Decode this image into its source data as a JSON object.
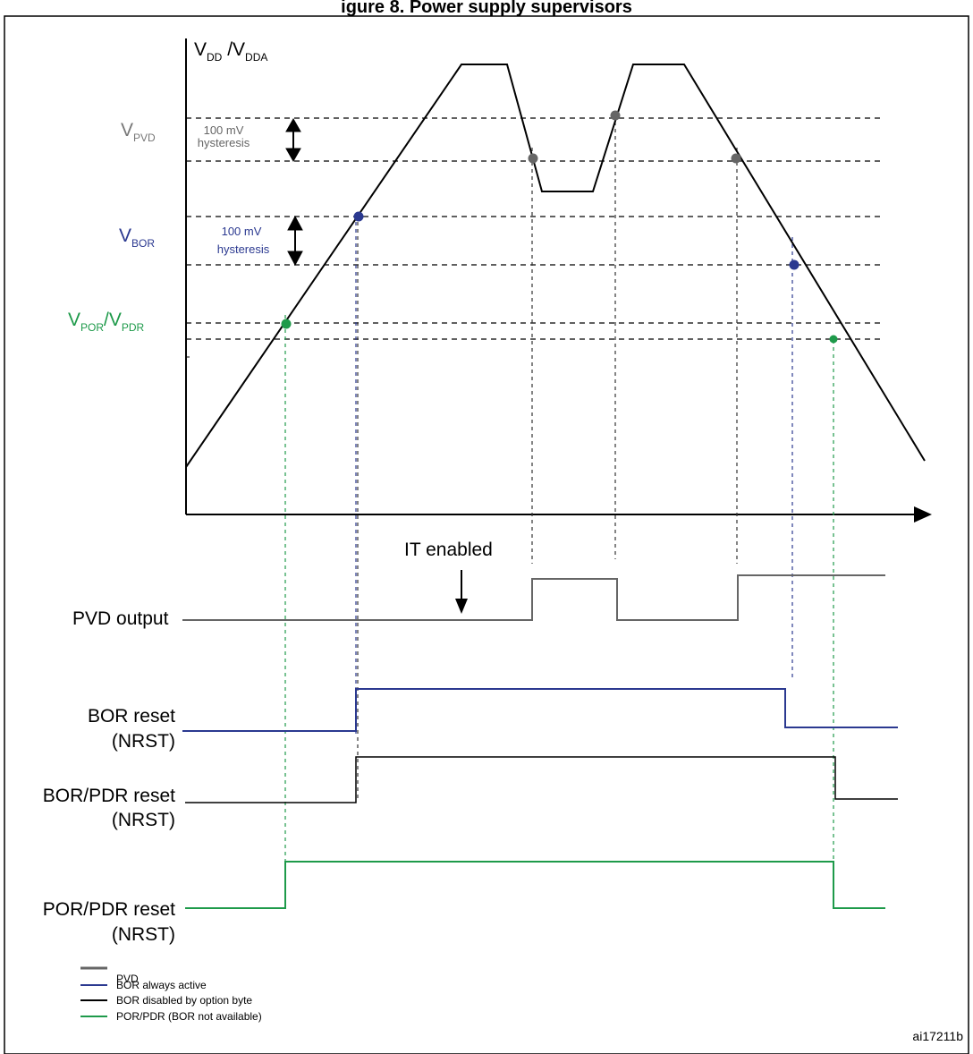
{
  "figure": {
    "title_partial": "igure 8. Power supply supervisors",
    "figure_id": "ai17211b"
  },
  "axis": {
    "y_label_main": "V",
    "y_label_sub1": "DD",
    "y_label_mid": " /V",
    "y_label_sub2": "DDA"
  },
  "levels": {
    "pvd": {
      "main": "V",
      "sub": "PVD",
      "color": "#777777",
      "hysteresis_line1": "100 mV",
      "hysteresis_line2": "hysteresis"
    },
    "bor": {
      "main": "V",
      "sub": "BOR",
      "color": "#2b3990",
      "hysteresis_line1": "100 mV",
      "hysteresis_line2": "hysteresis"
    },
    "por": {
      "main1": "V",
      "sub1": "POR",
      "sep": "/V",
      "main2": "V",
      "sub2": "PDR",
      "color": "#1e9a4a"
    }
  },
  "annotations": {
    "it_enabled": "IT enabled"
  },
  "signals": {
    "pvd_output": "PVD output",
    "bor_reset": "BOR reset",
    "bor_reset_sub": "(NRST)",
    "bor_pdr_reset": "BOR/PDR reset",
    "bor_pdr_reset_sub": "(NRST)",
    "por_pdr_reset": "POR/PDR reset",
    "por_pdr_reset_sub": "(NRST)"
  },
  "legend": [
    {
      "label": "PVD",
      "color": "#666666"
    },
    {
      "label": "BOR always active",
      "color": "#2b3990"
    },
    {
      "label": "BOR disabled by option byte",
      "color": "#000000"
    },
    {
      "label": "POR/PDR (BOR not available)",
      "color": "#1e9a4a"
    }
  ]
}
